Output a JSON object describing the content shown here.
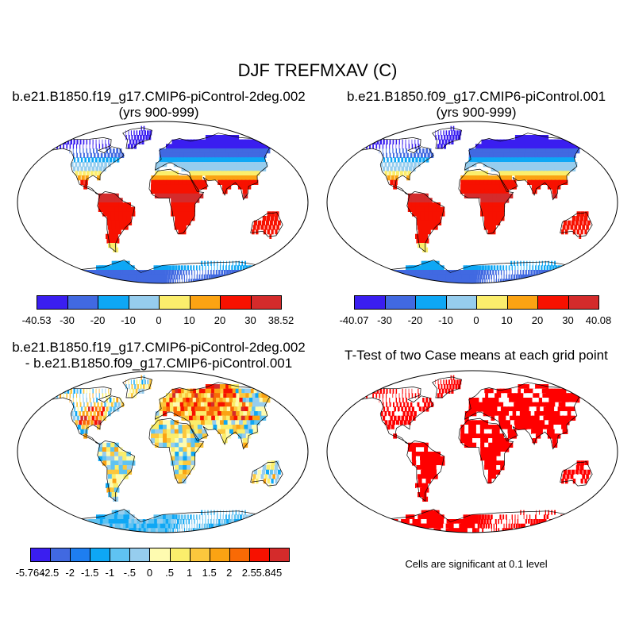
{
  "title": "DJF TREFMXAV (C)",
  "panels": {
    "top_left": {
      "title_line1": "b.e21.B1850.f19_g17.CMIP6-piControl-2deg.002",
      "title_line2": "(yrs 900-999)"
    },
    "top_right": {
      "title_line1": "b.e21.B1850.f09_g17.CMIP6-piControl.001",
      "title_line2": "(yrs 900-999)"
    },
    "bottom_left": {
      "title_line1": "b.e21.B1850.f19_g17.CMIP6-piControl-2deg.002",
      "title_line2": "- b.e21.B1850.f09_g17.CMIP6-piControl.001"
    },
    "bottom_right": {
      "title_line1": "T-Test of two Case means at each grid point",
      "note": "Cells are significant at 0.1 level"
    }
  },
  "colorbars": {
    "case1": {
      "labels": [
        "-40.53",
        "-30",
        "-20",
        "-10",
        "0",
        "10",
        "20",
        "30",
        "38.52"
      ],
      "colors": [
        "#3a1ef0",
        "#4169e1",
        "#0ea7f5",
        "#96cdee",
        "#fbee6c",
        "#fba313",
        "#f71100",
        "#d42b2b"
      ]
    },
    "case2": {
      "labels": [
        "-40.07",
        "-30",
        "-20",
        "-10",
        "0",
        "10",
        "20",
        "30",
        "40.08"
      ],
      "colors": [
        "#3a1ef0",
        "#4169e1",
        "#0ea7f5",
        "#96cdee",
        "#fbee6c",
        "#fba313",
        "#f71100",
        "#d42b2b"
      ]
    },
    "diff": {
      "labels": [
        "-5.764",
        "-2.5",
        "-2",
        "-1.5",
        "-1",
        "-.5",
        "0",
        ".5",
        "1",
        "1.5",
        "2",
        "2.5",
        "5.845"
      ],
      "colors": [
        "#3a1ef0",
        "#4169e1",
        "#1e7ef0",
        "#0ea7f5",
        "#5fc3f2",
        "#96cdee",
        "#fefbb0",
        "#fbee6c",
        "#fcc73d",
        "#fba313",
        "#f96a05",
        "#f71100",
        "#d42b2b"
      ]
    }
  }
}
